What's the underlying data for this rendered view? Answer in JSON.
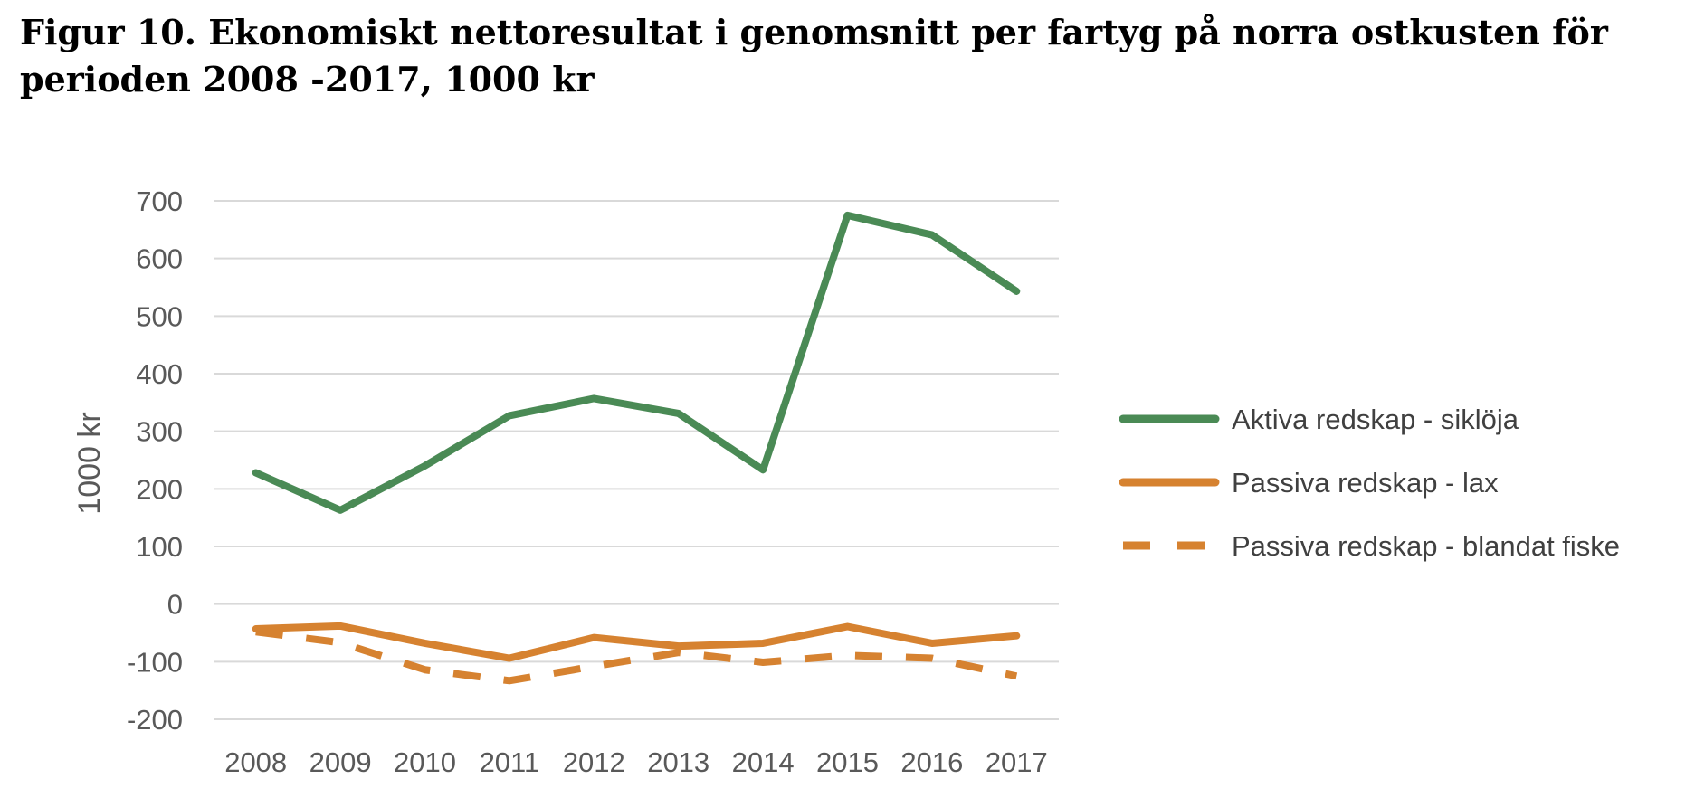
{
  "title": "Figur 10. Ekonomiskt nettoresultat i genomsnitt per fartyg på norra ostkusten för perioden 2008 -2017, 1000 kr",
  "chart_data": {
    "type": "line",
    "categories": [
      "2008",
      "2009",
      "2010",
      "2011",
      "2012",
      "2013",
      "2014",
      "2015",
      "2016",
      "2017"
    ],
    "ylabel": "1000 kr",
    "ylim": [
      -200,
      700
    ],
    "yticks": [
      700,
      600,
      500,
      400,
      300,
      200,
      100,
      0,
      -100,
      -200
    ],
    "grid": true,
    "legend_position": "right",
    "series": [
      {
        "name": "Aktiva redskap - siklöja",
        "color": "#4a8a55",
        "style": "solid",
        "values": [
          228,
          163,
          240,
          327,
          357,
          331,
          233,
          675,
          641,
          543
        ]
      },
      {
        "name": "Passiva redskap - lax",
        "color": "#d68230",
        "style": "solid",
        "values": [
          -43,
          -38,
          -68,
          -94,
          -58,
          -73,
          -68,
          -39,
          -68,
          -55
        ]
      },
      {
        "name": "Passiva redskap - blandat fiske",
        "color": "#d68230",
        "style": "dashed",
        "values": [
          -48,
          -67,
          -114,
          -133,
          -108,
          -84,
          -101,
          -89,
          -94,
          -125
        ]
      }
    ]
  }
}
